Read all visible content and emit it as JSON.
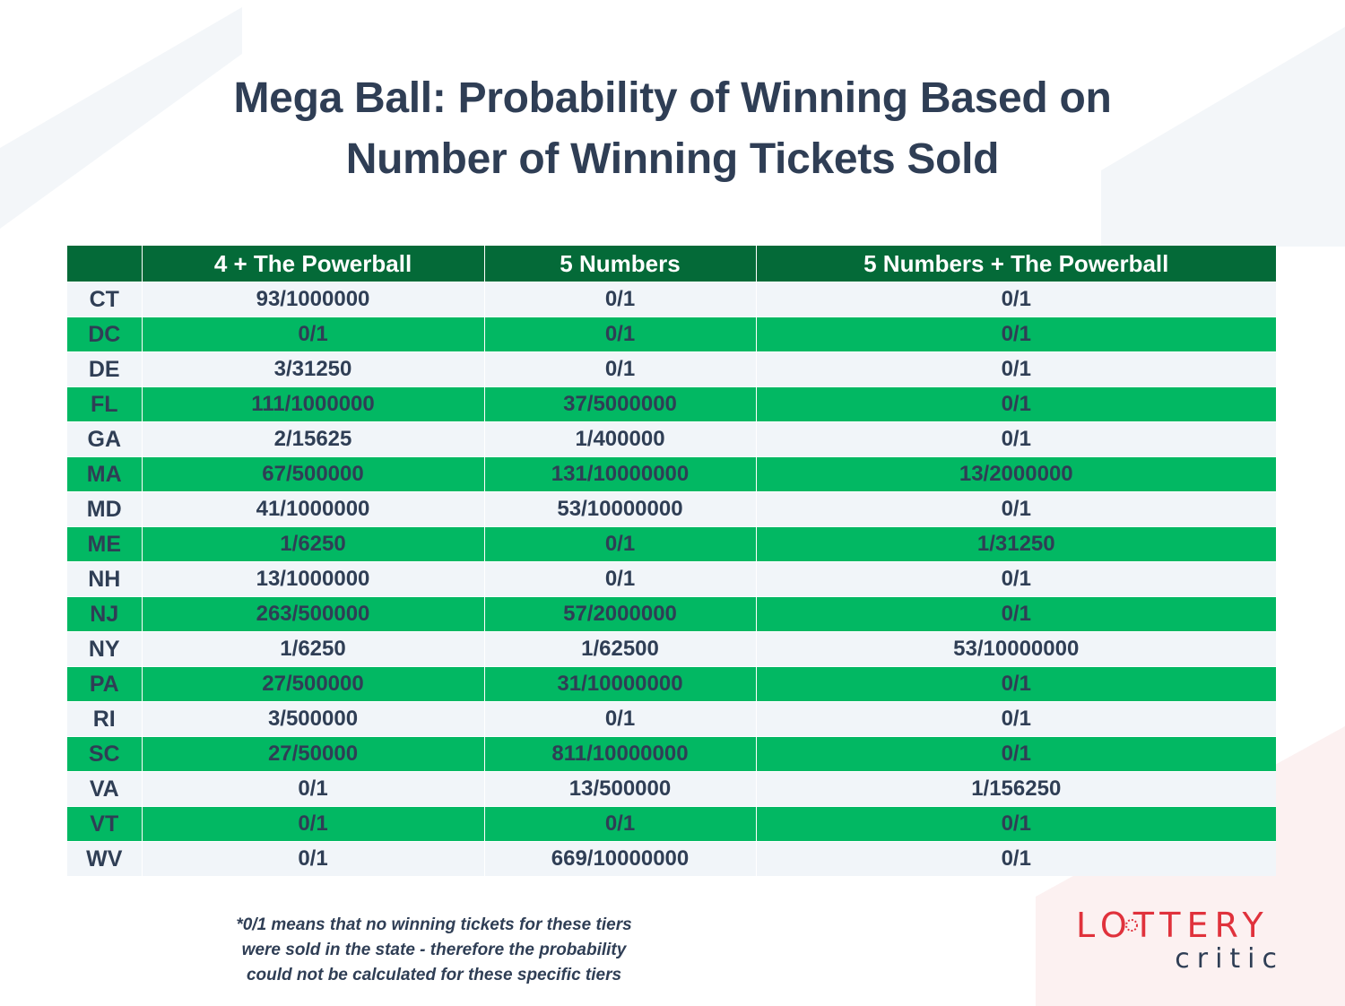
{
  "title": {
    "line1": "Mega Ball: Probability of Winning Based on",
    "line2": "Number of Winning Tickets Sold"
  },
  "table": {
    "columns": [
      "",
      "4 + The Powerball",
      "5 Numbers",
      "5 Numbers + The Powerball"
    ],
    "rows": [
      {
        "state": "CT",
        "c1": "93/1000000",
        "c2": "0/1",
        "c3": "0/1"
      },
      {
        "state": "DC",
        "c1": "0/1",
        "c2": "0/1",
        "c3": "0/1"
      },
      {
        "state": "DE",
        "c1": "3/31250",
        "c2": "0/1",
        "c3": "0/1"
      },
      {
        "state": "FL",
        "c1": "111/1000000",
        "c2": "37/5000000",
        "c3": "0/1"
      },
      {
        "state": "GA",
        "c1": "2/15625",
        "c2": "1/400000",
        "c3": "0/1"
      },
      {
        "state": "MA",
        "c1": "67/500000",
        "c2": "131/10000000",
        "c3": "13/2000000"
      },
      {
        "state": "MD",
        "c1": "41/1000000",
        "c2": "53/10000000",
        "c3": "0/1"
      },
      {
        "state": "ME",
        "c1": "1/6250",
        "c2": "0/1",
        "c3": "1/31250"
      },
      {
        "state": "NH",
        "c1": "13/1000000",
        "c2": "0/1",
        "c3": "0/1"
      },
      {
        "state": "NJ",
        "c1": "263/500000",
        "c2": "57/2000000",
        "c3": "0/1"
      },
      {
        "state": "NY",
        "c1": "1/6250",
        "c2": "1/62500",
        "c3": "53/10000000"
      },
      {
        "state": "PA",
        "c1": "27/500000",
        "c2": "31/10000000",
        "c3": "0/1"
      },
      {
        "state": "RI",
        "c1": "3/500000",
        "c2": "0/1",
        "c3": "0/1"
      },
      {
        "state": "SC",
        "c1": "27/50000",
        "c2": "811/10000000",
        "c3": "0/1"
      },
      {
        "state": "VA",
        "c1": "0/1",
        "c2": "13/500000",
        "c3": "1/156250"
      },
      {
        "state": "VT",
        "c1": "0/1",
        "c2": "0/1",
        "c3": "0/1"
      },
      {
        "state": "WV",
        "c1": "0/1",
        "c2": "669/10000000",
        "c3": "0/1"
      }
    ]
  },
  "footnote": {
    "line1": "*0/1 means that no winning tickets for these tiers",
    "line2": "were sold in the state - therefore the probability",
    "line3": "could not be calculated for these specific tiers"
  },
  "logo": {
    "top_text": "LOTTERY",
    "bottom_text": "critic"
  },
  "colors": {
    "header_bg": "#046a38",
    "stripe_green": "#02b863",
    "stripe_light": "#f1f5f9",
    "text_dark": "#2f3e55",
    "logo_red": "#e0323c"
  }
}
